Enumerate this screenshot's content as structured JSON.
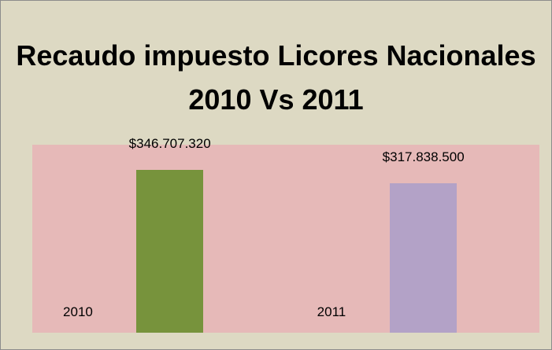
{
  "chart_data": {
    "type": "bar",
    "title": "Recaudo impuesto Licores Nacionales 2010 Vs 2011",
    "categories": [
      "2010",
      "2011"
    ],
    "values": [
      346707320,
      317838500
    ],
    "value_labels": [
      "$346.707.320",
      "$317.838.500"
    ],
    "colors": [
      "#77933c",
      "#b3a2c7"
    ],
    "ylim": [
      0,
      400000000
    ]
  }
}
